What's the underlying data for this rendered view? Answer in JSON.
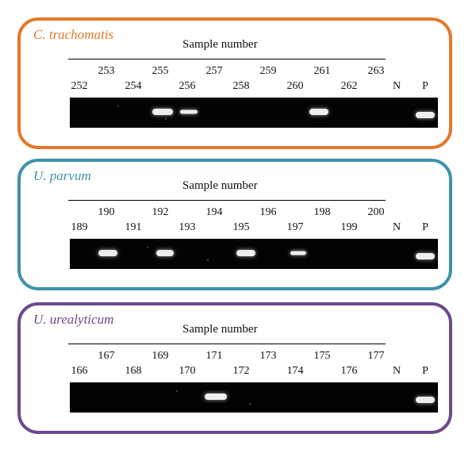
{
  "colors": {
    "trachomatis": "#e4782a",
    "parvum": "#3c93a8",
    "urealyticum": "#6b4a8c"
  },
  "panels": [
    {
      "species": "C. trachomatis",
      "color_key": "trachomatis",
      "header": "Sample number",
      "top_labels": [
        "253",
        "255",
        "257",
        "259",
        "261",
        "263"
      ],
      "bottom_labels": [
        "252",
        "254",
        "256",
        "258",
        "260",
        "262",
        "N",
        "P"
      ],
      "bands": [
        "255",
        "256",
        "261",
        "P"
      ]
    },
    {
      "species": "U. parvum",
      "color_key": "parvum",
      "header": "Sample number",
      "top_labels": [
        "190",
        "192",
        "194",
        "196",
        "198",
        "200"
      ],
      "bottom_labels": [
        "189",
        "191",
        "193",
        "195",
        "197",
        "199",
        "N",
        "P"
      ],
      "bands": [
        "190",
        "192",
        "196",
        "198",
        "P"
      ]
    },
    {
      "species": "U. urealyticum",
      "color_key": "urealyticum",
      "header": "Sample number",
      "top_labels": [
        "167",
        "169",
        "171",
        "173",
        "175",
        "177"
      ],
      "bottom_labels": [
        "166",
        "168",
        "170",
        "172",
        "174",
        "176",
        "N",
        "P"
      ],
      "bands": [
        "171",
        "P"
      ]
    }
  ]
}
